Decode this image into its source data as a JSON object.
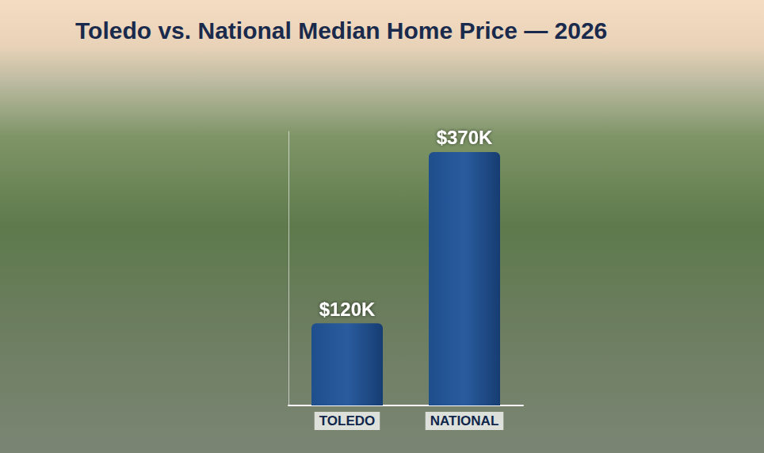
{
  "chart_data": {
    "type": "bar",
    "title": "Toledo vs. National Median Home Price — 2026",
    "categories": [
      "TOLEDO",
      "NATIONAL"
    ],
    "values": [
      120000,
      370000
    ],
    "value_labels": [
      "$120K",
      "$370K"
    ],
    "color": "#1f4e8c",
    "ylim": [
      0,
      400000
    ],
    "grid": false,
    "data_labels": true,
    "tick_labels": "x"
  }
}
